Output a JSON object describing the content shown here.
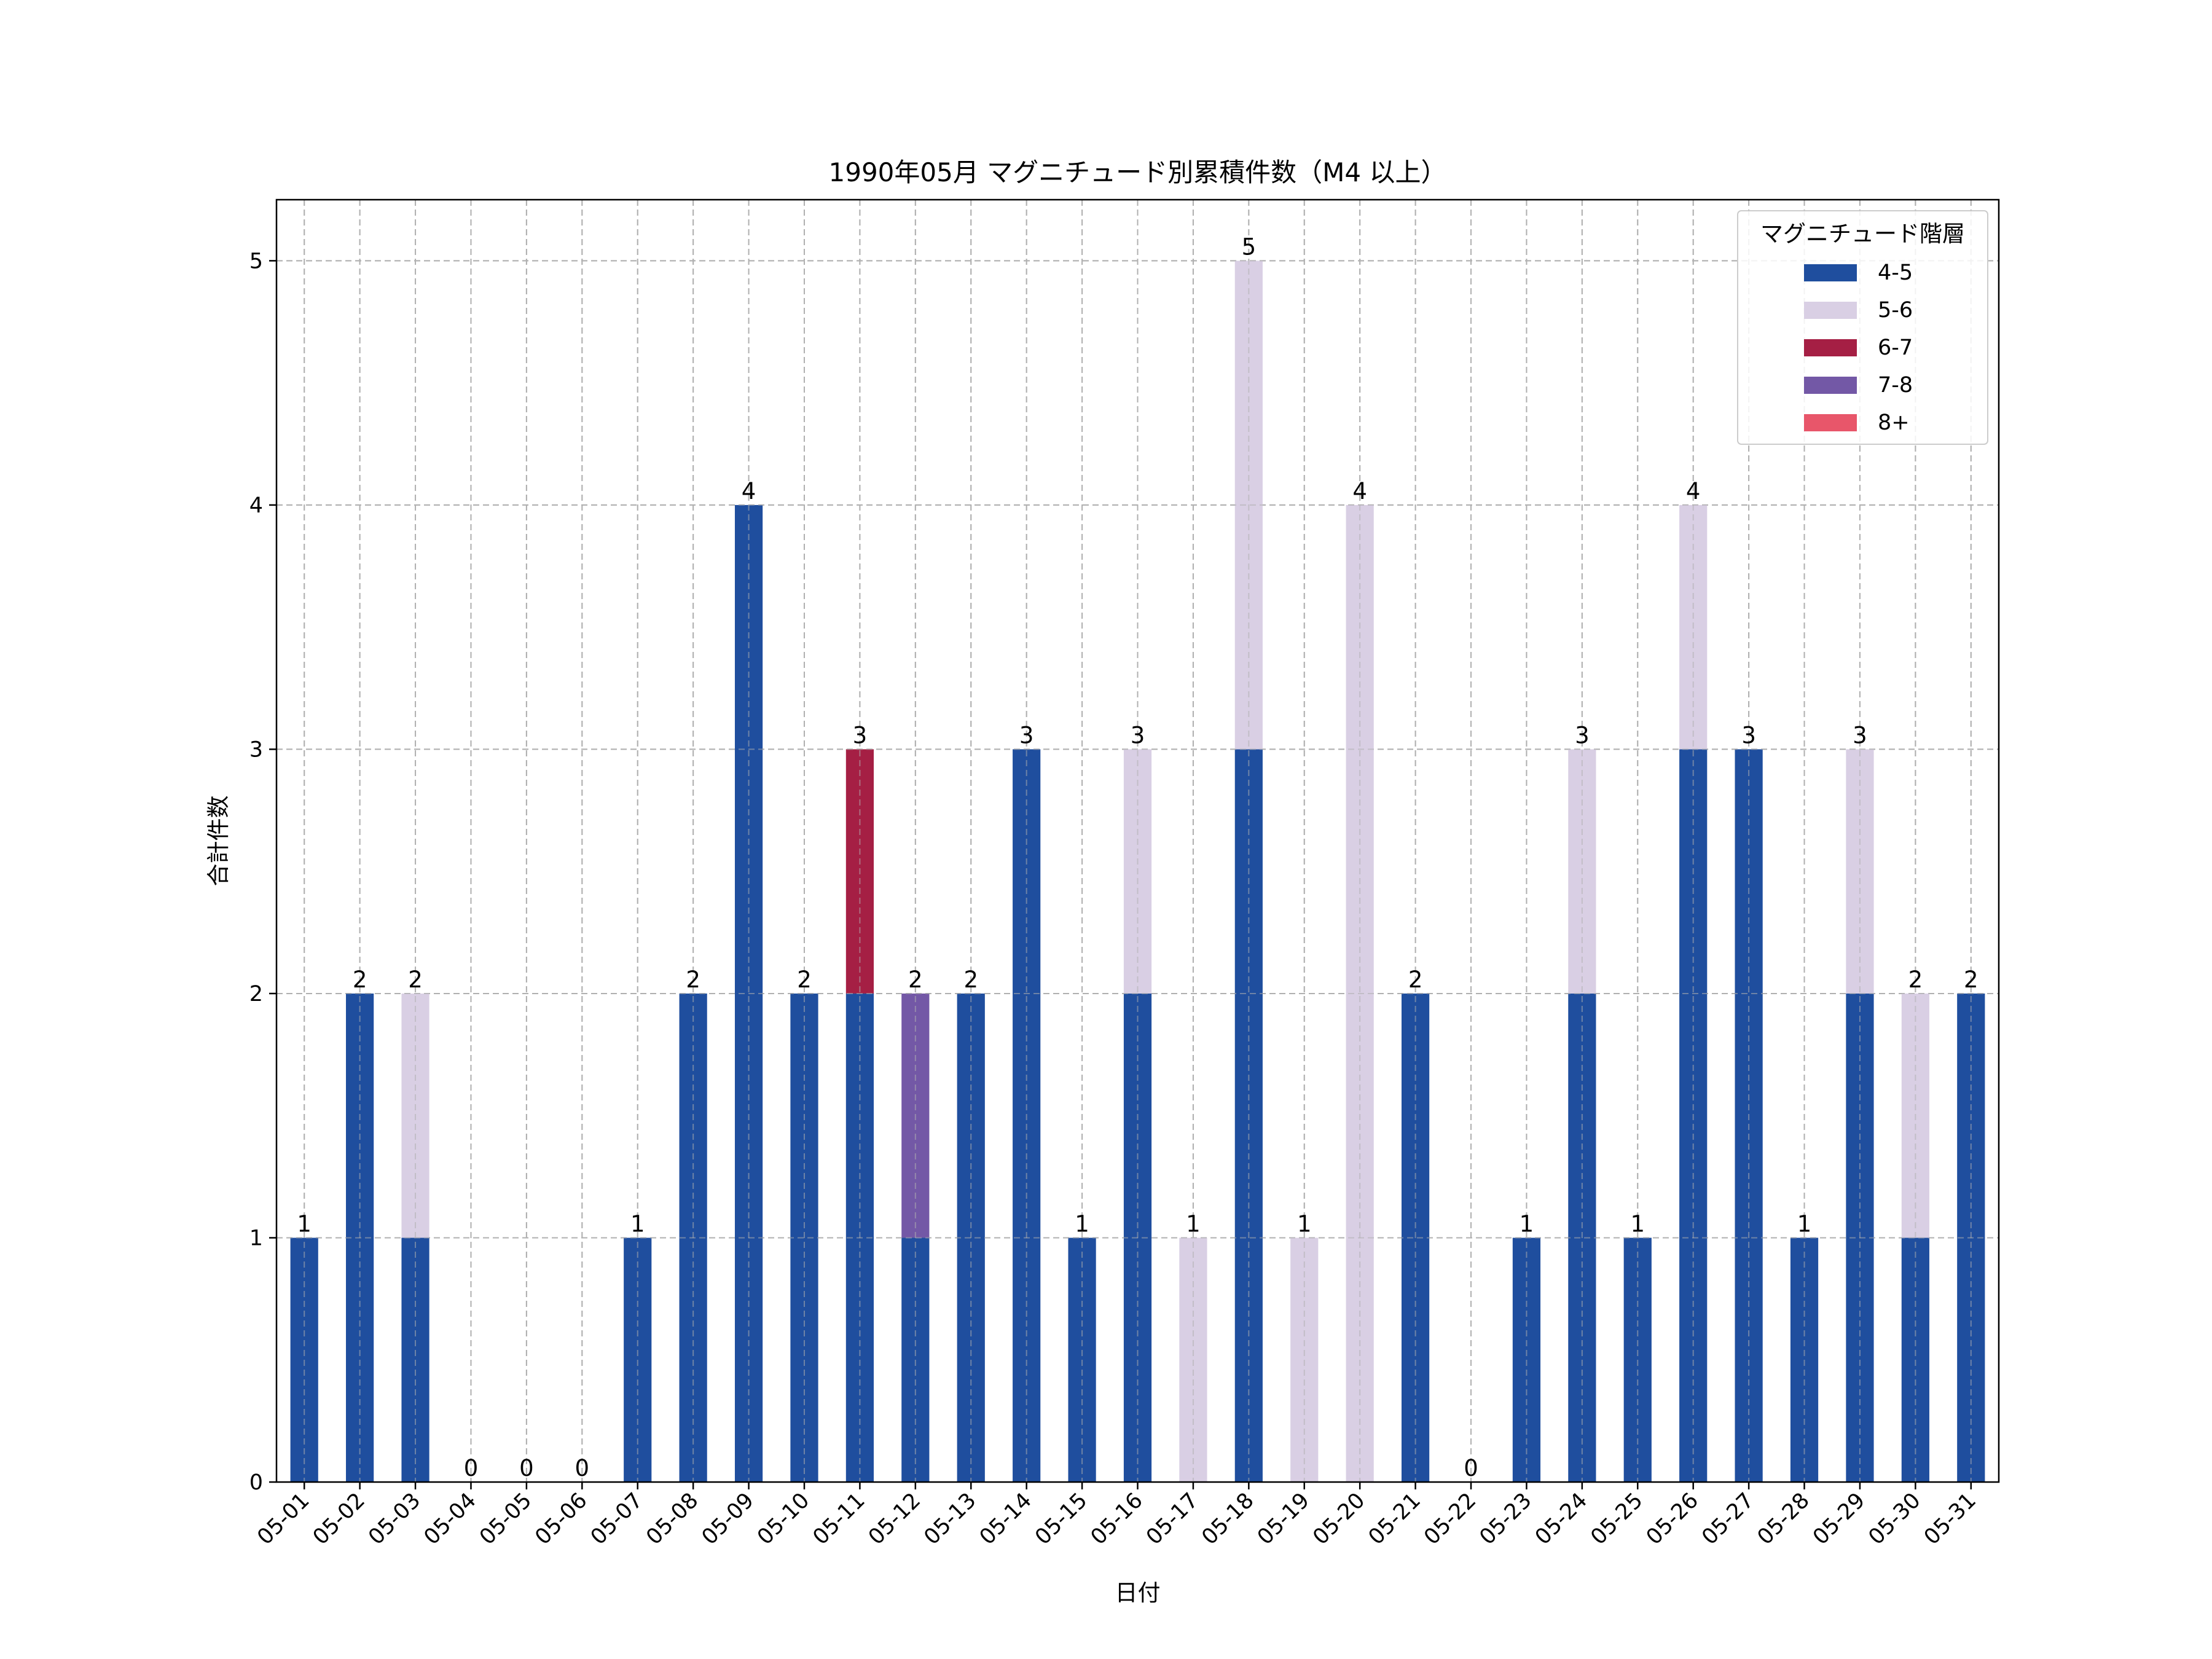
{
  "chart_data": {
    "type": "bar",
    "stacked": true,
    "title": "1990年05月 マグニチュード別累積件数（M4 以上）",
    "xlabel": "日付",
    "ylabel": "合計件数",
    "ylim": [
      0,
      5.25
    ],
    "yticks": [
      0,
      1,
      2,
      3,
      4,
      5
    ],
    "grid": true,
    "legend_title": "マグニチュード階層",
    "legend_position": "top-right",
    "categories": [
      "05-01",
      "05-02",
      "05-03",
      "05-04",
      "05-05",
      "05-06",
      "05-07",
      "05-08",
      "05-09",
      "05-10",
      "05-11",
      "05-12",
      "05-13",
      "05-14",
      "05-15",
      "05-16",
      "05-17",
      "05-18",
      "05-19",
      "05-20",
      "05-21",
      "05-22",
      "05-23",
      "05-24",
      "05-25",
      "05-26",
      "05-27",
      "05-28",
      "05-29",
      "05-30",
      "05-31"
    ],
    "series": [
      {
        "name": "4-5",
        "color": "#1f4e9e",
        "values": [
          1,
          2,
          1,
          0,
          0,
          0,
          1,
          2,
          4,
          2,
          2,
          1,
          2,
          3,
          1,
          2,
          0,
          3,
          0,
          0,
          2,
          0,
          1,
          2,
          1,
          3,
          3,
          1,
          2,
          1,
          2
        ]
      },
      {
        "name": "5-6",
        "color": "#d9cfe4",
        "values": [
          0,
          0,
          1,
          0,
          0,
          0,
          0,
          0,
          0,
          0,
          0,
          0,
          0,
          0,
          0,
          1,
          1,
          2,
          1,
          4,
          0,
          0,
          0,
          1,
          0,
          1,
          0,
          0,
          1,
          1,
          0
        ]
      },
      {
        "name": "6-7",
        "color": "#a51f44",
        "values": [
          0,
          0,
          0,
          0,
          0,
          0,
          0,
          0,
          0,
          0,
          1,
          0,
          0,
          0,
          0,
          0,
          0,
          0,
          0,
          0,
          0,
          0,
          0,
          0,
          0,
          0,
          0,
          0,
          0,
          0,
          0
        ]
      },
      {
        "name": "7-8",
        "color": "#7358a6",
        "values": [
          0,
          0,
          0,
          0,
          0,
          0,
          0,
          0,
          0,
          0,
          0,
          1,
          0,
          0,
          0,
          0,
          0,
          0,
          0,
          0,
          0,
          0,
          0,
          0,
          0,
          0,
          0,
          0,
          0,
          0,
          0
        ]
      },
      {
        "name": "8+",
        "color": "#e8566a",
        "values": [
          0,
          0,
          0,
          0,
          0,
          0,
          0,
          0,
          0,
          0,
          0,
          0,
          0,
          0,
          0,
          0,
          0,
          0,
          0,
          0,
          0,
          0,
          0,
          0,
          0,
          0,
          0,
          0,
          0,
          0,
          0
        ]
      }
    ],
    "totals": [
      "1",
      "2",
      "2",
      "0",
      "0",
      "0",
      "1",
      "2",
      "4",
      "2",
      "3",
      "2",
      "2",
      "3",
      "1",
      "3",
      "1",
      "5",
      "1",
      "4",
      "2",
      "0",
      "1",
      "3",
      "1",
      "4",
      "3",
      "1",
      "3",
      "2",
      "2"
    ]
  }
}
